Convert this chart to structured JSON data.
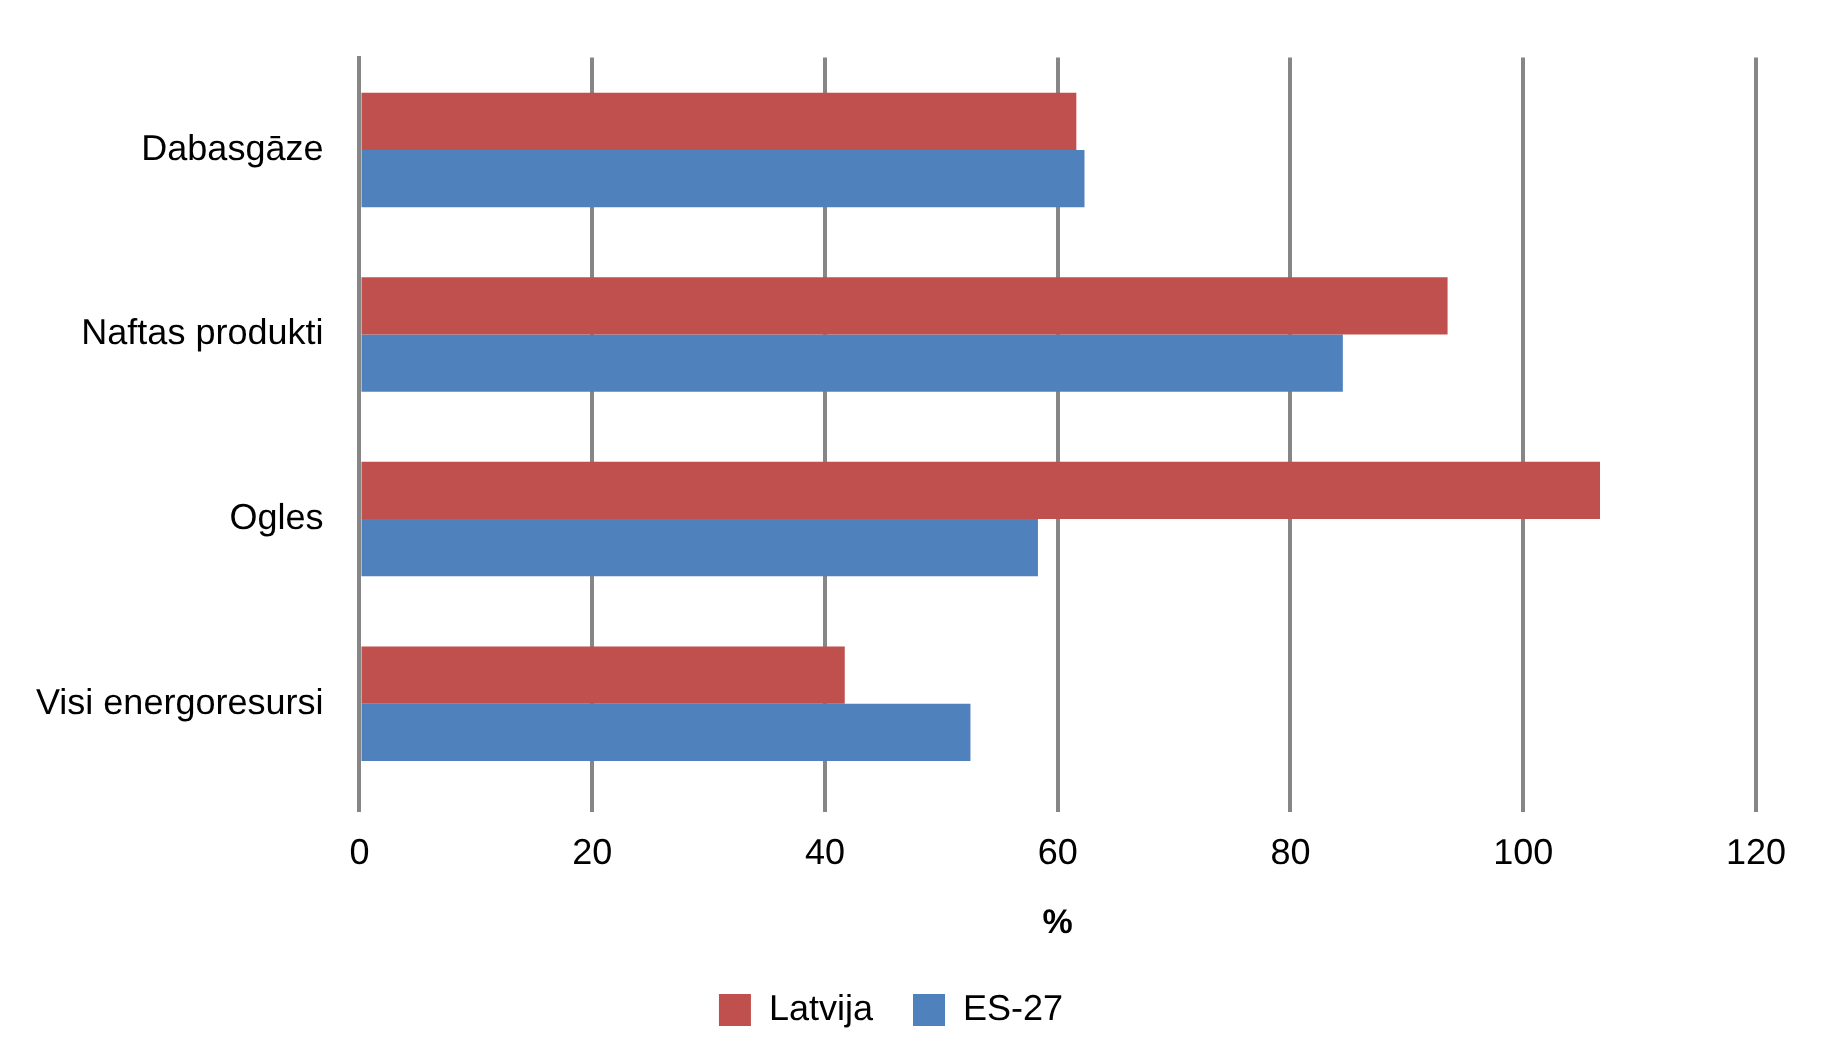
{
  "chart_data": {
    "type": "bar",
    "orientation": "horizontal",
    "xlabel": "%",
    "categories": [
      "Dabasgāze",
      "Naftas produkti",
      "Ogles",
      "Visi energoresursi"
    ],
    "series": [
      {
        "name": "Latvija",
        "color": "#c0504d",
        "values": [
          61.6,
          93.5,
          106.6,
          41.7
        ]
      },
      {
        "name": "ES-27",
        "color": "#4f81bd",
        "values": [
          62.3,
          84.5,
          58.3,
          52.5
        ]
      }
    ],
    "xlim": [
      0,
      120
    ],
    "xticks": [
      0,
      20,
      40,
      60,
      80,
      100,
      120
    ],
    "grid": "x",
    "legend": "bottom"
  }
}
